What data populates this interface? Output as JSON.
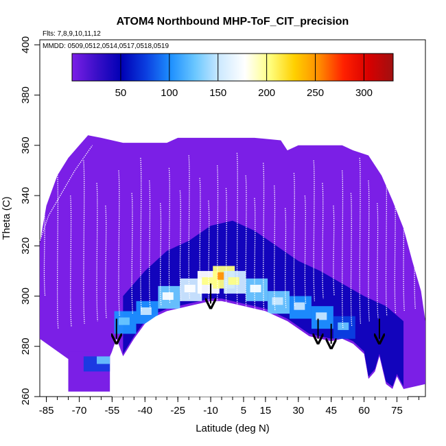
{
  "chart_data": {
    "type": "heatmap",
    "title": "ATOM4 Northbound MHP-ToF_CIT_precision",
    "flights_label": "Flts: 7,8,9,10,11,12",
    "dates_label": "MMDD: 0509,0512,0514,0517,0518,0519",
    "xlabel": "Latitude (deg N)",
    "ylabel": "Theta (C)",
    "xlim": [
      -88,
      88
    ],
    "ylim": [
      260,
      402
    ],
    "x_ticks": [
      -85,
      -70,
      -55,
      -40,
      -25,
      -10,
      5,
      15,
      30,
      45,
      60,
      75
    ],
    "y_ticks": [
      260,
      280,
      300,
      320,
      340,
      360,
      380,
      400
    ],
    "colorbar": {
      "range": [
        0,
        330
      ],
      "ticks": [
        50,
        100,
        150,
        200,
        250,
        300
      ],
      "colors": [
        "#7b1fe6",
        "#3a0fc8",
        "#0000b4",
        "#0b3fe0",
        "#1e90ff",
        "#6cc8ff",
        "#cfeaff",
        "#ffffff",
        "#ffff80",
        "#ffd000",
        "#ff8c00",
        "#ff2000",
        "#d80000",
        "#a01010"
      ]
    },
    "tropopause_boundary": [
      {
        "lat": -55,
        "theta": 278
      },
      {
        "lat": -53,
        "theta": 283
      },
      {
        "lat": -50,
        "theta": 276
      },
      {
        "lat": -45,
        "theta": 283
      },
      {
        "lat": -40,
        "theta": 289
      },
      {
        "lat": -35,
        "theta": 292
      },
      {
        "lat": -30,
        "theta": 294
      },
      {
        "lat": -25,
        "theta": 295
      },
      {
        "lat": -20,
        "theta": 296
      },
      {
        "lat": -15,
        "theta": 297
      },
      {
        "lat": -10,
        "theta": 298
      },
      {
        "lat": -5,
        "theta": 298
      },
      {
        "lat": 0,
        "theta": 297
      },
      {
        "lat": 5,
        "theta": 296
      },
      {
        "lat": 10,
        "theta": 295
      },
      {
        "lat": 15,
        "theta": 294
      },
      {
        "lat": 20,
        "theta": 292
      },
      {
        "lat": 25,
        "theta": 290
      },
      {
        "lat": 30,
        "theta": 287
      },
      {
        "lat": 35,
        "theta": 284
      },
      {
        "lat": 40,
        "theta": 283
      },
      {
        "lat": 45,
        "theta": 282
      },
      {
        "lat": 50,
        "theta": 283
      },
      {
        "lat": 55,
        "theta": 281
      },
      {
        "lat": 60,
        "theta": 277
      },
      {
        "lat": 62,
        "theta": 267
      },
      {
        "lat": 65,
        "theta": 270
      },
      {
        "lat": 67,
        "theta": 276
      },
      {
        "lat": 70,
        "theta": 265
      },
      {
        "lat": 73,
        "theta": 263
      },
      {
        "lat": 75,
        "theta": 268
      },
      {
        "lat": 78,
        "theta": 263
      }
    ],
    "data_top": [
      {
        "lat": -88,
        "theta": 321
      },
      {
        "lat": -85,
        "theta": 336
      },
      {
        "lat": -80,
        "theta": 348
      },
      {
        "lat": -75,
        "theta": 355
      },
      {
        "lat": -70,
        "theta": 360
      },
      {
        "lat": -66,
        "theta": 364
      },
      {
        "lat": -60,
        "theta": 363
      },
      {
        "lat": -50,
        "theta": 361
      },
      {
        "lat": -30,
        "theta": 361
      },
      {
        "lat": -25,
        "theta": 363
      },
      {
        "lat": 10,
        "theta": 363
      },
      {
        "lat": 22,
        "theta": 362
      },
      {
        "lat": 25,
        "theta": 358
      },
      {
        "lat": 30,
        "theta": 360
      },
      {
        "lat": 50,
        "theta": 360
      },
      {
        "lat": 55,
        "theta": 358
      },
      {
        "lat": 62,
        "theta": 356
      },
      {
        "lat": 68,
        "theta": 348
      },
      {
        "lat": 73,
        "theta": 338
      },
      {
        "lat": 78,
        "theta": 327
      },
      {
        "lat": 82,
        "theta": 314
      },
      {
        "lat": 86,
        "theta": 302
      }
    ],
    "high_precision_band": [
      {
        "lat": -50,
        "theta": 290,
        "value": 95
      },
      {
        "lat": -40,
        "theta": 294,
        "value": 110
      },
      {
        "lat": -30,
        "theta": 300,
        "value": 125
      },
      {
        "lat": -20,
        "theta": 303,
        "value": 140
      },
      {
        "lat": -12,
        "theta": 306,
        "value": 170
      },
      {
        "lat": -5,
        "theta": 308,
        "value": 215
      },
      {
        "lat": 0,
        "theta": 306,
        "value": 160
      },
      {
        "lat": 10,
        "theta": 303,
        "value": 135
      },
      {
        "lat": 20,
        "theta": 298,
        "value": 115
      },
      {
        "lat": 30,
        "theta": 296,
        "value": 105
      },
      {
        "lat": 40,
        "theta": 292,
        "value": 100
      },
      {
        "lat": 50,
        "theta": 288,
        "value": 85
      }
    ],
    "arrows": [
      {
        "lat": -53,
        "theta": 288
      },
      {
        "lat": -10,
        "theta": 302
      },
      {
        "lat": 39,
        "theta": 288
      },
      {
        "lat": 45,
        "theta": 286
      },
      {
        "lat": 67,
        "theta": 288
      }
    ]
  }
}
